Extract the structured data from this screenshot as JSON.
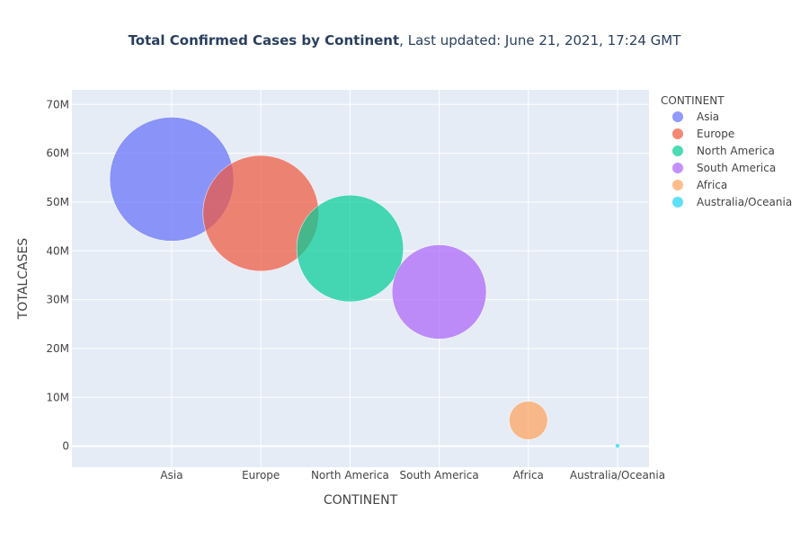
{
  "chart_data": {
    "type": "scatter",
    "title_bold": "Total Confirmed Cases by Continent",
    "title_rest": ", Last updated: June 21, 2021, 17:24 GMT",
    "xlabel": "CONTINENT",
    "ylabel": "TOTALCASES",
    "categories": [
      "Asia",
      "Europe",
      "North America",
      "South America",
      "Africa",
      "Australia/Oceania"
    ],
    "ylim": [
      -4300000,
      73000000
    ],
    "yticks": [
      0,
      10000000,
      20000000,
      30000000,
      40000000,
      50000000,
      60000000,
      70000000
    ],
    "ytick_labels": [
      "0",
      "10M",
      "20M",
      "30M",
      "40M",
      "50M",
      "60M",
      "70M"
    ],
    "grid": true,
    "legend": {
      "title": "CONTINENT",
      "placement": "top-right"
    },
    "series": [
      {
        "name": "Asia",
        "value": 54700000,
        "color": "#636efa"
      },
      {
        "name": "Europe",
        "value": 47700000,
        "color": "#ef553b"
      },
      {
        "name": "North America",
        "value": 40500000,
        "color": "#00cc96"
      },
      {
        "name": "South America",
        "value": 31600000,
        "color": "#ab63fa"
      },
      {
        "name": "Africa",
        "value": 5270000,
        "color": "#ffa15a"
      },
      {
        "name": "Australia/Oceania",
        "value": 70000,
        "color": "#19d3f3"
      }
    ]
  }
}
